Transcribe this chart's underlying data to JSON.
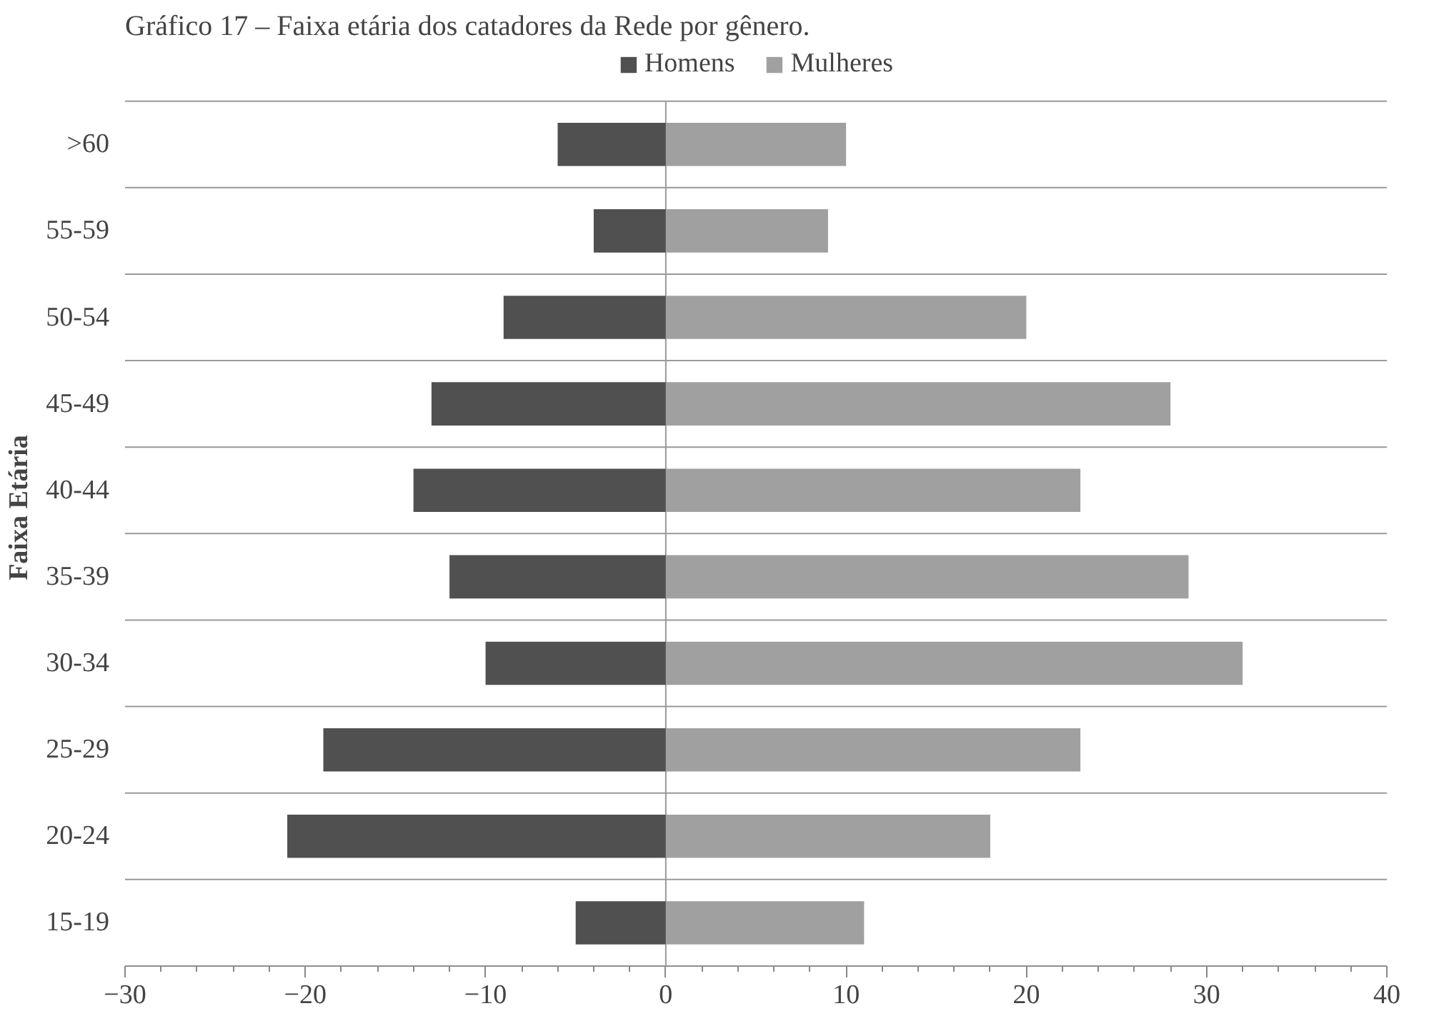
{
  "chart_data": {
    "type": "bar",
    "orientation": "horizontal",
    "title": "Gráfico 17 – Faixa etária dos catadores da Rede por gênero.",
    "ylabel": "Faixa Etária",
    "categories": [
      ">60",
      "55-59",
      "50-54",
      "45-49",
      "40-44",
      "35-39",
      "30-34",
      "25-29",
      "20-24",
      "15-19"
    ],
    "series": [
      {
        "name": "Homens",
        "color": "#505050",
        "values": [
          -6,
          -4,
          -9,
          -13,
          -14,
          -12,
          -10,
          -19,
          -21,
          -5
        ]
      },
      {
        "name": "Mulheres",
        "color": "#a0a0a0",
        "values": [
          10,
          9,
          20,
          28,
          23,
          29,
          32,
          23,
          18,
          11
        ]
      }
    ],
    "xlim": [
      -30,
      40
    ],
    "xticks": [
      -30,
      -20,
      -10,
      0,
      10,
      20,
      30,
      40
    ],
    "stacked": true,
    "grid": true,
    "legend": "top"
  }
}
